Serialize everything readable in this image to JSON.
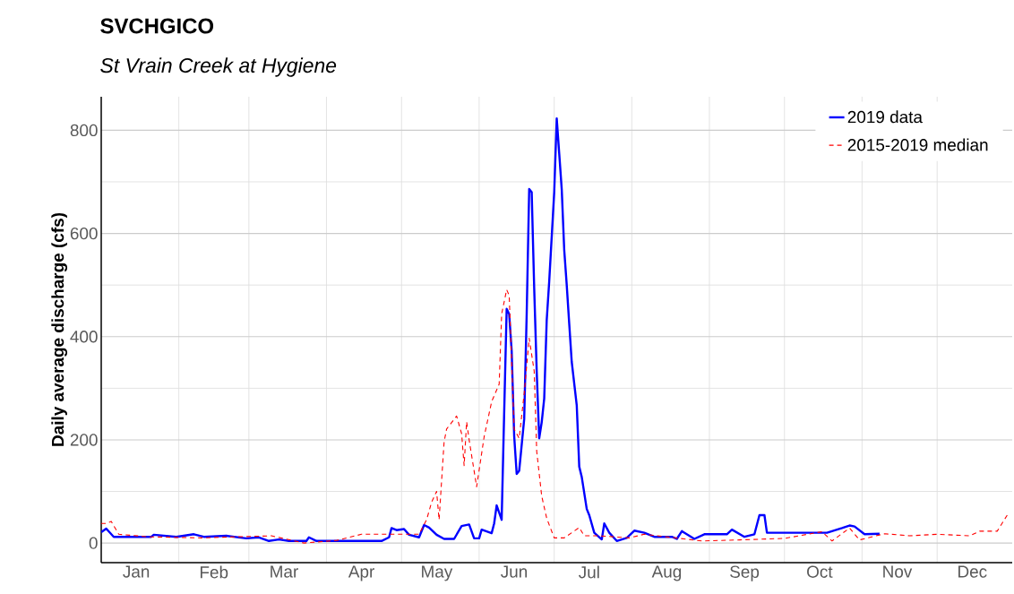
{
  "chart_data": {
    "type": "line",
    "title": "SVCHGICO",
    "subtitle": "St Vrain Creek at Hygiene",
    "ylabel": "Daily average discharge (cfs)",
    "xlim": [
      "2019-01-01",
      "2019-12-31"
    ],
    "xticks": [
      {
        "value": "2019-01-15",
        "label": "Jan"
      },
      {
        "value": "2019-02-15",
        "label": "Feb"
      },
      {
        "value": "2019-03-15",
        "label": "Mar"
      },
      {
        "value": "2019-04-15",
        "label": "Apr"
      },
      {
        "value": "2019-05-15",
        "label": "May"
      },
      {
        "value": "2019-06-15",
        "label": "Jun"
      },
      {
        "value": "2019-07-15",
        "label": "Jul"
      },
      {
        "value": "2019-08-15",
        "label": "Aug"
      },
      {
        "value": "2019-09-15",
        "label": "Sep"
      },
      {
        "value": "2019-10-15",
        "label": "Oct"
      },
      {
        "value": "2019-11-15",
        "label": "Nov"
      },
      {
        "value": "2019-12-15",
        "label": "Dec"
      },
      {
        "value": "2019-02-01",
        "label": null
      },
      {
        "value": "2019-03-01",
        "label": null
      },
      {
        "value": "2019-04-01",
        "label": null
      },
      {
        "value": "2019-05-01",
        "label": null
      },
      {
        "value": "2019-06-01",
        "label": null
      },
      {
        "value": "2019-07-01",
        "label": null
      },
      {
        "value": "2019-08-01",
        "label": null
      },
      {
        "value": "2019-09-01",
        "label": null
      },
      {
        "value": "2019-10-01",
        "label": null
      },
      {
        "value": "2019-11-01",
        "label": null
      },
      {
        "value": "2019-12-01",
        "label": null
      }
    ],
    "ylim": [
      -38,
      865
    ],
    "yticks": [
      0,
      200,
      400,
      600,
      800,
      {
        "value": 100,
        "label": null
      },
      {
        "value": 300,
        "label": null
      },
      {
        "value": 500,
        "label": null
      },
      {
        "value": 700,
        "label": null
      }
    ],
    "grid": true,
    "legend": "top right",
    "series": [
      {
        "name": "2019 data",
        "color": "#0000ff",
        "line_style": "solid",
        "x": [
          "2019-01-01",
          "2019-01-03",
          "2019-01-06",
          "2019-01-21",
          "2019-01-22",
          "2019-01-31",
          "2019-02-07",
          "2019-02-11",
          "2019-02-20",
          "2019-02-28",
          "2019-03-05",
          "2019-03-09",
          "2019-03-13",
          "2019-03-17",
          "2019-03-24",
          "2019-03-25",
          "2019-03-28",
          "2019-04-23",
          "2019-04-26",
          "2019-04-27",
          "2019-04-29",
          "2019-05-02",
          "2019-05-04",
          "2019-05-08",
          "2019-05-10",
          "2019-05-12",
          "2019-05-15",
          "2019-05-18",
          "2019-05-22",
          "2019-05-25",
          "2019-05-28",
          "2019-05-30",
          "2019-06-01",
          "2019-06-02",
          "2019-06-06",
          "2019-06-07",
          "2019-06-08",
          "2019-06-10",
          "2019-06-11",
          "2019-06-12",
          "2019-06-13",
          "2019-06-14",
          "2019-06-15",
          "2019-06-16",
          "2019-06-17",
          "2019-06-19",
          "2019-06-20",
          "2019-06-21",
          "2019-06-22",
          "2019-06-23",
          "2019-06-24",
          "2019-06-25",
          "2019-06-26",
          "2019-06-27",
          "2019-06-28",
          "2019-06-29",
          "2019-07-01",
          "2019-07-02",
          "2019-07-03",
          "2019-07-04",
          "2019-07-05",
          "2019-07-06",
          "2019-07-07",
          "2019-07-08",
          "2019-07-10",
          "2019-07-11",
          "2019-07-12",
          "2019-07-14",
          "2019-07-15",
          "2019-07-17",
          "2019-07-20",
          "2019-07-21",
          "2019-07-23",
          "2019-07-26",
          "2019-07-30",
          "2019-08-02",
          "2019-08-06",
          "2019-08-10",
          "2019-08-17",
          "2019-08-19",
          "2019-08-21",
          "2019-08-26",
          "2019-08-30",
          "2019-09-08",
          "2019-09-10",
          "2019-09-15",
          "2019-09-19",
          "2019-09-21",
          "2019-09-23",
          "2019-09-24",
          "2019-10-08",
          "2019-10-18",
          "2019-10-24",
          "2019-10-27",
          "2019-10-29",
          "2019-11-02",
          "2019-11-08"
        ],
        "values": [
          21,
          28,
          12,
          12,
          16,
          12,
          17,
          12,
          14,
          9,
          11,
          4,
          7,
          4,
          4,
          11,
          4,
          4,
          11,
          29,
          25,
          27,
          16,
          11,
          35,
          30,
          16,
          8,
          8,
          33,
          36,
          9,
          9,
          26,
          19,
          38,
          73,
          45,
          252,
          454,
          444,
          373,
          208,
          134,
          140,
          240,
          444,
          686,
          680,
          494,
          333,
          203,
          234,
          280,
          432,
          507,
          680,
          823,
          755,
          686,
          568,
          500,
          425,
          351,
          267,
          148,
          128,
          66,
          54,
          20,
          7,
          38,
          20,
          4,
          10,
          24,
          20,
          12,
          12,
          8,
          23,
          8,
          17,
          17,
          26,
          12,
          17,
          54,
          54,
          20,
          20,
          20,
          29,
          34,
          32,
          17,
          18
        ]
      },
      {
        "name": "2015-2019 median",
        "color": "#ff0000",
        "line_style": "dashed",
        "x": [
          "2019-01-01",
          "2019-01-03",
          "2019-01-05",
          "2019-01-08",
          "2019-01-20",
          "2019-02-10",
          "2019-03-10",
          "2019-03-23",
          "2019-04-05",
          "2019-04-15",
          "2019-04-26",
          "2019-05-08",
          "2019-05-11",
          "2019-05-13",
          "2019-05-15",
          "2019-05-16",
          "2019-05-18",
          "2019-05-19",
          "2019-05-23",
          "2019-05-25",
          "2019-05-26",
          "2019-05-27",
          "2019-05-28",
          "2019-05-31",
          "2019-06-03",
          "2019-06-06",
          "2019-06-09",
          "2019-06-10",
          "2019-06-12",
          "2019-06-13",
          "2019-06-14",
          "2019-06-15",
          "2019-06-17",
          "2019-06-19",
          "2019-06-21",
          "2019-06-23",
          "2019-06-24",
          "2019-06-26",
          "2019-06-28",
          "2019-07-01",
          "2019-07-05",
          "2019-07-11",
          "2019-07-13",
          "2019-07-19",
          "2019-07-31",
          "2019-08-06",
          "2019-08-29",
          "2019-09-13",
          "2019-10-01",
          "2019-10-16",
          "2019-10-20",
          "2019-10-27",
          "2019-10-31",
          "2019-11-10",
          "2019-11-20",
          "2019-12-01",
          "2019-12-14",
          "2019-12-18",
          "2019-12-25",
          "2019-12-29"
        ],
        "values": [
          38,
          38,
          42,
          17,
          12,
          10,
          14,
          0,
          5,
          17,
          17,
          17,
          45,
          79,
          100,
          45,
          196,
          221,
          246,
          212,
          150,
          235,
          200,
          109,
          206,
          274,
          308,
          444,
          491,
          480,
          351,
          221,
          203,
          290,
          397,
          333,
          178,
          91,
          48,
          10,
          10,
          30,
          14,
          14,
          10,
          17,
          4,
          6,
          9,
          22,
          4,
          29,
          6,
          18,
          14,
          17,
          14,
          23,
          23,
          54
        ]
      }
    ]
  }
}
